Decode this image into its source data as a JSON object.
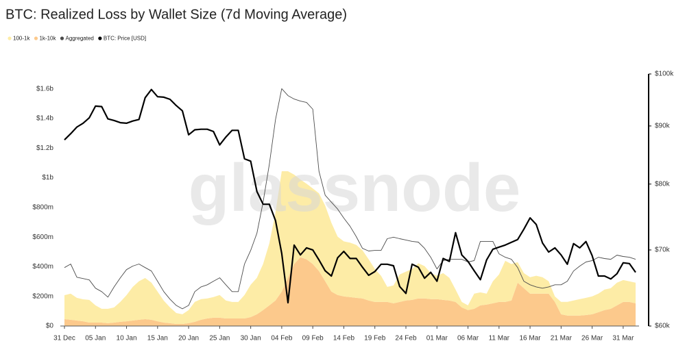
{
  "chart_data": {
    "type": "stacked_area_line",
    "title": "BTC: Realized Loss by Wallet Size (7d Moving Average)",
    "watermark": "glassnode",
    "categories": [
      "31 Dec",
      null,
      null,
      null,
      null,
      "05 Jan",
      null,
      null,
      null,
      null,
      "10 Jan",
      null,
      null,
      null,
      null,
      "15 Jan",
      null,
      null,
      null,
      null,
      "20 Jan",
      null,
      null,
      null,
      null,
      "25 Jan",
      null,
      null,
      null,
      null,
      "30 Jan",
      null,
      null,
      null,
      null,
      "04 Feb",
      null,
      null,
      null,
      null,
      "09 Feb",
      null,
      null,
      null,
      null,
      "14 Feb",
      null,
      null,
      null,
      null,
      "19 Feb",
      null,
      null,
      null,
      null,
      "24 Feb",
      null,
      null,
      null,
      null,
      "01 Mar",
      null,
      null,
      null,
      null,
      "06 Mar",
      null,
      null,
      null,
      null,
      "11 Mar",
      null,
      null,
      null,
      null,
      "16 Mar",
      null,
      null,
      null,
      null,
      "21 Mar",
      null,
      null,
      null,
      null,
      "26 Mar",
      null,
      null,
      null,
      null,
      "31 Mar",
      null,
      null
    ],
    "series": [
      {
        "name": "100-1k",
        "type": "area",
        "color": "#fdeca6",
        "values": [
          162000000,
          176000000,
          153000000,
          148000000,
          153000000,
          116000000,
          93000000,
          97000000,
          102000000,
          135000000,
          176000000,
          227000000,
          260000000,
          278000000,
          251000000,
          200000000,
          148000000,
          107000000,
          74000000,
          65000000,
          88000000,
          135000000,
          139000000,
          135000000,
          139000000,
          153000000,
          121000000,
          111000000,
          111000000,
          158000000,
          218000000,
          246000000,
          311000000,
          418000000,
          594000000,
          812000000,
          719000000,
          603000000,
          524000000,
          510000000,
          510000000,
          524000000,
          510000000,
          464000000,
          394000000,
          371000000,
          367000000,
          357000000,
          325000000,
          278000000,
          223000000,
          176000000,
          102000000,
          121000000,
          186000000,
          195000000,
          209000000,
          237000000,
          218000000,
          176000000,
          158000000,
          181000000,
          153000000,
          84000000,
          37000000,
          32000000,
          102000000,
          88000000,
          74000000,
          148000000,
          186000000,
          278000000,
          246000000,
          139000000,
          102000000,
          111000000,
          121000000,
          111000000,
          84000000,
          37000000,
          84000000,
          93000000,
          102000000,
          111000000,
          116000000,
          121000000,
          125000000,
          139000000,
          139000000,
          153000000,
          148000000,
          139000000,
          139000000
        ]
      },
      {
        "name": "1k-10k",
        "type": "area",
        "color": "#fcc98c",
        "values": [
          46000000,
          42000000,
          37000000,
          32000000,
          23000000,
          23000000,
          23000000,
          19000000,
          23000000,
          28000000,
          32000000,
          37000000,
          42000000,
          46000000,
          42000000,
          32000000,
          23000000,
          19000000,
          14000000,
          14000000,
          19000000,
          28000000,
          42000000,
          51000000,
          56000000,
          56000000,
          51000000,
          51000000,
          51000000,
          51000000,
          60000000,
          79000000,
          107000000,
          139000000,
          172000000,
          232000000,
          325000000,
          418000000,
          464000000,
          450000000,
          418000000,
          371000000,
          302000000,
          232000000,
          209000000,
          200000000,
          195000000,
          190000000,
          186000000,
          172000000,
          162000000,
          162000000,
          162000000,
          153000000,
          162000000,
          172000000,
          176000000,
          186000000,
          186000000,
          181000000,
          181000000,
          176000000,
          172000000,
          162000000,
          125000000,
          107000000,
          116000000,
          139000000,
          144000000,
          153000000,
          162000000,
          162000000,
          172000000,
          292000000,
          255000000,
          218000000,
          218000000,
          218000000,
          218000000,
          162000000,
          79000000,
          70000000,
          70000000,
          70000000,
          74000000,
          79000000,
          93000000,
          107000000,
          116000000,
          139000000,
          162000000,
          162000000,
          153000000
        ]
      },
      {
        "name": "Aggregated",
        "type": "line",
        "color": "#4a4a4a",
        "values": [
          394000000,
          418000000,
          329000000,
          320000000,
          311000000,
          255000000,
          232000000,
          195000000,
          264000000,
          325000000,
          380000000,
          404000000,
          418000000,
          394000000,
          371000000,
          302000000,
          232000000,
          181000000,
          139000000,
          116000000,
          139000000,
          232000000,
          264000000,
          278000000,
          302000000,
          325000000,
          278000000,
          232000000,
          232000000,
          418000000,
          510000000,
          626000000,
          835000000,
          1090000000,
          1392000000,
          1601000000,
          1554000000,
          1531000000,
          1517000000,
          1508000000,
          1462000000,
          1044000000,
          882000000,
          835000000,
          789000000,
          728000000,
          673000000,
          603000000,
          524000000,
          506000000,
          510000000,
          510000000,
          589000000,
          599000000,
          589000000,
          580000000,
          571000000,
          566000000,
          524000000,
          464000000,
          385000000,
          441000000,
          450000000,
          450000000,
          450000000,
          432000000,
          441000000,
          571000000,
          571000000,
          571000000,
          487000000,
          464000000,
          450000000,
          394000000,
          302000000,
          278000000,
          264000000,
          255000000,
          264000000,
          278000000,
          278000000,
          302000000,
          371000000,
          404000000,
          432000000,
          441000000,
          464000000,
          455000000,
          450000000,
          478000000,
          469000000,
          464000000,
          450000000
        ]
      },
      {
        "name": "BTC: Price [USD]",
        "type": "line",
        "axis": "y2",
        "color": "#000000",
        "values": [
          87500,
          88600,
          89800,
          90500,
          91500,
          93700,
          93600,
          91300,
          91000,
          90600,
          90500,
          90900,
          91200,
          95300,
          96900,
          95500,
          95400,
          95000,
          93800,
          92800,
          88400,
          89300,
          89400,
          89400,
          89000,
          86600,
          88000,
          89200,
          89200,
          84200,
          83800,
          78800,
          76800,
          76800,
          74300,
          69500,
          62900,
          70700,
          69300,
          70300,
          70000,
          68600,
          67100,
          66400,
          68900,
          69800,
          68800,
          68800,
          67600,
          66500,
          67000,
          68000,
          68000,
          67800,
          65000,
          64100,
          68000,
          67600,
          66100,
          66900,
          65700,
          68800,
          68400,
          72500,
          69300,
          68400,
          67100,
          65900,
          68600,
          70100,
          70400,
          70700,
          71100,
          71500,
          73000,
          74700,
          73700,
          71000,
          69700,
          70300,
          69300,
          68000,
          70900,
          70300,
          71200,
          69200,
          66400,
          66400,
          66000,
          66700,
          68200,
          68100,
          66900
        ]
      }
    ],
    "ylim": [
      0,
      1700000000
    ],
    "yticks": [
      {
        "value": 0,
        "label": "$0"
      },
      {
        "value": 200000000,
        "label": "$200m"
      },
      {
        "value": 400000000,
        "label": "$400m"
      },
      {
        "value": 600000000,
        "label": "$600m"
      },
      {
        "value": 800000000,
        "label": "$800m"
      },
      {
        "value": 1000000000,
        "label": "$1b"
      },
      {
        "value": 1200000000,
        "label": "$1.2b"
      },
      {
        "value": 1400000000,
        "label": "$1.4b"
      },
      {
        "value": 1600000000,
        "label": "$1.6b"
      }
    ],
    "y2lim": [
      60000,
      100000
    ],
    "y2scale": "log",
    "y2ticks": [
      {
        "value": 60000,
        "label": "$60k"
      },
      {
        "value": 70000,
        "label": "$70k"
      },
      {
        "value": 80000,
        "label": "$80k"
      },
      {
        "value": 90000,
        "label": "$90k"
      },
      {
        "value": 100000,
        "label": "$100k"
      }
    ],
    "grid": false,
    "legend": "top-left"
  }
}
